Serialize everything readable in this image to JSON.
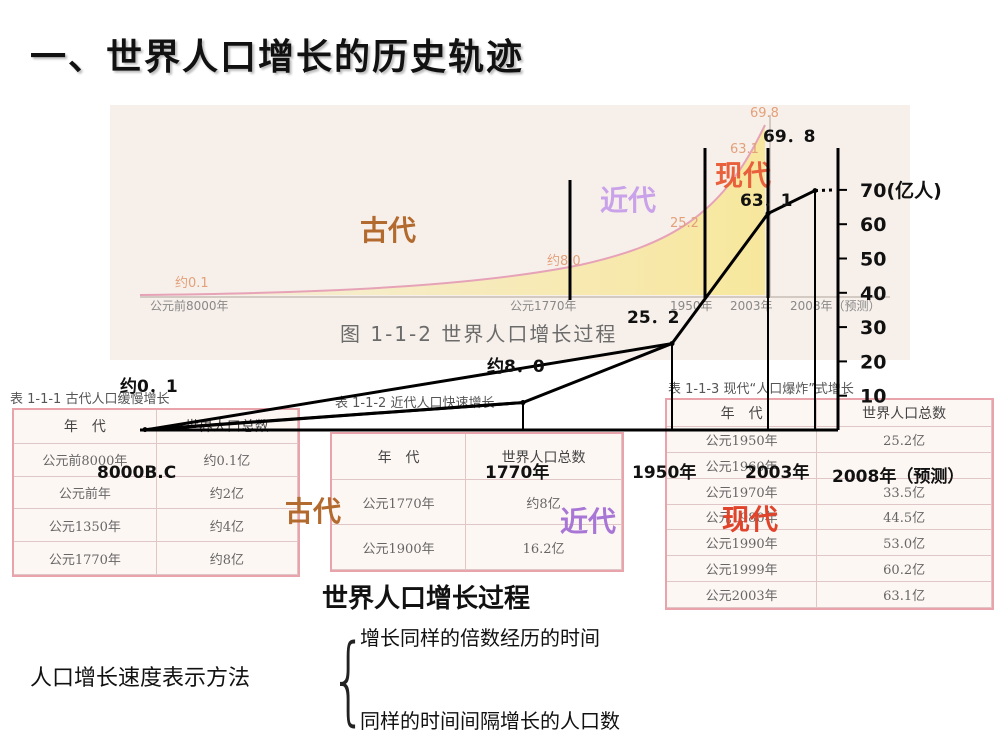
{
  "slide": {
    "title": "一、世界人口增长的历史轨迹"
  },
  "background_figure": {
    "caption": "图 1-1-2 世界人口增长过程",
    "era_labels": [
      "古代",
      "近代",
      "现代"
    ],
    "point_labels": [
      "约0.1",
      "约8.0",
      "25.2",
      "63.1",
      "69.8"
    ],
    "axis_labels": [
      "公元前8000年",
      "公元1770年",
      "1950年",
      "2003年",
      "2008年（预测）"
    ]
  },
  "tables": {
    "ancient": {
      "caption": "表 1-1-1 古代人口缓慢增长",
      "headers": [
        "年　代",
        "世界人口总数"
      ],
      "rows": [
        [
          "公元前8000年",
          "约0.1亿"
        ],
        [
          "公元前年",
          "约2亿"
        ],
        [
          "公元1350年",
          "约4亿"
        ],
        [
          "公元1770年",
          "约8亿"
        ]
      ]
    },
    "modern": {
      "caption": "表 1-1-2 近代人口快速增长",
      "headers": [
        "年　代",
        "世界人口总数"
      ],
      "rows": [
        [
          "公元1770年",
          "约8亿"
        ],
        [
          "公元1900年",
          "16.2亿"
        ]
      ]
    },
    "present": {
      "caption": "表 1-1-3 现代“人口爆炸”式增长",
      "headers": [
        "年　代",
        "世界人口总数"
      ],
      "rows": [
        [
          "公元1950年",
          "25.2亿"
        ],
        [
          "公元1960年",
          ""
        ],
        [
          "公元1970年",
          "33.5亿"
        ],
        [
          "公元1980年",
          "44.5亿"
        ],
        [
          "公元1990年",
          "53.0亿"
        ],
        [
          "公元1999年",
          "60.2亿"
        ],
        [
          "公元2003年",
          "63.1亿"
        ]
      ]
    }
  },
  "overlay_labels": {
    "era_ancient": "古代",
    "era_modern": "近代",
    "era_present": "现代"
  },
  "chart_data": {
    "type": "line",
    "title": "世界人口增长过程",
    "x": [
      "8000B.C",
      "1770年",
      "1950年",
      "2003年",
      "2008年（预测）"
    ],
    "y": [
      0.1,
      8.0,
      25.2,
      63.1,
      69.8
    ],
    "point_labels": [
      "约0．1",
      "约8．0",
      "25．2",
      "63．1",
      "69．8"
    ],
    "yaxis_ticks": [
      "10",
      "20",
      "30",
      "40",
      "50",
      "60",
      "70(亿人)"
    ],
    "ylim": [
      0,
      70
    ],
    "unit": "亿人",
    "era_labels": [
      "古代",
      "近代",
      "现代"
    ],
    "grid": false
  },
  "methods": {
    "label": "人口增长速度表示方法",
    "items": [
      "增长同样的倍数经历的时间",
      "同样的时间间隔增长的人口数"
    ]
  }
}
